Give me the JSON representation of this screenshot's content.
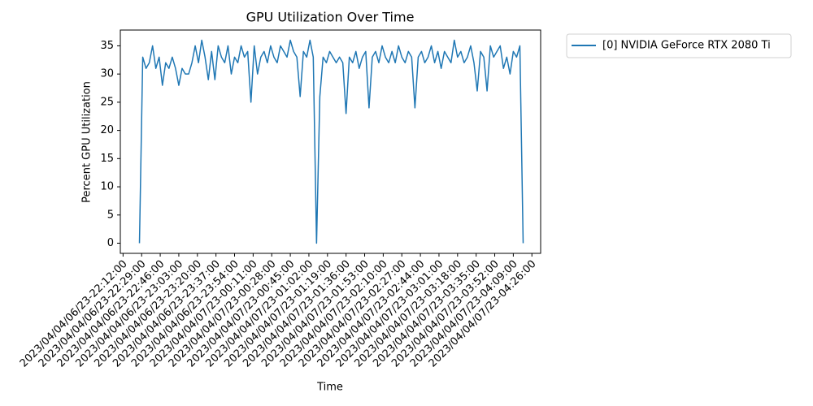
{
  "chart_data": {
    "type": "line",
    "title": "GPU Utilization Over Time",
    "x_label": "Time",
    "y_label": "Percent GPU Utilization",
    "x": [
      "2023-04-06T22:27",
      "2023-04-06T22:30",
      "2023-04-06T22:33",
      "2023-04-06T22:36",
      "2023-04-06T22:39",
      "2023-04-06T22:42",
      "2023-04-06T22:45",
      "2023-04-06T22:48",
      "2023-04-06T22:51",
      "2023-04-06T22:54",
      "2023-04-06T22:57",
      "2023-04-06T23:00",
      "2023-04-06T23:03",
      "2023-04-06T23:06",
      "2023-04-06T23:09",
      "2023-04-06T23:12",
      "2023-04-06T23:15",
      "2023-04-06T23:18",
      "2023-04-06T23:21",
      "2023-04-06T23:24",
      "2023-04-06T23:27",
      "2023-04-06T23:30",
      "2023-04-06T23:33",
      "2023-04-06T23:36",
      "2023-04-06T23:39",
      "2023-04-06T23:42",
      "2023-04-06T23:45",
      "2023-04-06T23:48",
      "2023-04-06T23:51",
      "2023-04-06T23:54",
      "2023-04-06T23:57",
      "2023-04-07T00:00",
      "2023-04-07T00:03",
      "2023-04-07T00:06",
      "2023-04-07T00:09",
      "2023-04-07T00:12",
      "2023-04-07T00:15",
      "2023-04-07T00:18",
      "2023-04-07T00:21",
      "2023-04-07T00:24",
      "2023-04-07T00:27",
      "2023-04-07T00:30",
      "2023-04-07T00:33",
      "2023-04-07T00:36",
      "2023-04-07T00:39",
      "2023-04-07T00:42",
      "2023-04-07T00:45",
      "2023-04-07T00:48",
      "2023-04-07T00:51",
      "2023-04-07T00:54",
      "2023-04-07T00:57",
      "2023-04-07T01:00",
      "2023-04-07T01:03",
      "2023-04-07T01:06",
      "2023-04-07T01:09",
      "2023-04-07T01:12",
      "2023-04-07T01:15",
      "2023-04-07T01:18",
      "2023-04-07T01:21",
      "2023-04-07T01:24",
      "2023-04-07T01:27",
      "2023-04-07T01:30",
      "2023-04-07T01:33",
      "2023-04-07T01:36",
      "2023-04-07T01:39",
      "2023-04-07T01:42",
      "2023-04-07T01:45",
      "2023-04-07T01:48",
      "2023-04-07T01:51",
      "2023-04-07T01:54",
      "2023-04-07T01:57",
      "2023-04-07T02:00",
      "2023-04-07T02:03",
      "2023-04-07T02:06",
      "2023-04-07T02:09",
      "2023-04-07T02:12",
      "2023-04-07T02:15",
      "2023-04-07T02:18",
      "2023-04-07T02:21",
      "2023-04-07T02:24",
      "2023-04-07T02:27",
      "2023-04-07T02:30",
      "2023-04-07T02:33",
      "2023-04-07T02:36",
      "2023-04-07T02:39",
      "2023-04-07T02:42",
      "2023-04-07T02:45",
      "2023-04-07T02:48",
      "2023-04-07T02:51",
      "2023-04-07T02:54",
      "2023-04-07T02:57",
      "2023-04-07T03:00",
      "2023-04-07T03:03",
      "2023-04-07T03:06",
      "2023-04-07T03:09",
      "2023-04-07T03:12",
      "2023-04-07T03:15",
      "2023-04-07T03:18",
      "2023-04-07T03:21",
      "2023-04-07T03:24",
      "2023-04-07T03:27",
      "2023-04-07T03:30",
      "2023-04-07T03:33",
      "2023-04-07T03:36",
      "2023-04-07T03:39",
      "2023-04-07T03:42",
      "2023-04-07T03:45",
      "2023-04-07T03:48",
      "2023-04-07T03:51",
      "2023-04-07T03:54",
      "2023-04-07T03:57",
      "2023-04-07T04:00",
      "2023-04-07T04:03",
      "2023-04-07T04:06",
      "2023-04-07T04:09",
      "2023-04-07T04:12",
      "2023-04-07T04:15",
      "2023-04-07T04:18"
    ],
    "series": [
      {
        "name": "[0] NVIDIA GeForce RTX 2080 Ti",
        "color": "#1f77b4",
        "values": [
          0,
          33,
          31,
          32,
          35,
          31,
          33,
          28,
          32,
          31,
          33,
          31,
          28,
          31,
          30,
          30,
          32,
          35,
          32,
          36,
          33,
          29,
          34,
          29,
          35,
          33,
          32,
          35,
          30,
          33,
          32,
          35,
          33,
          34,
          25,
          35,
          30,
          33,
          34,
          32,
          35,
          33,
          32,
          35,
          34,
          33,
          36,
          34,
          33,
          26,
          34,
          33,
          36,
          33,
          0,
          26,
          33,
          32,
          34,
          33,
          32,
          33,
          32,
          23,
          33,
          32,
          34,
          31,
          33,
          34,
          24,
          33,
          34,
          32,
          35,
          33,
          32,
          34,
          32,
          35,
          33,
          32,
          34,
          33,
          24,
          33,
          34,
          32,
          33,
          35,
          32,
          34,
          31,
          34,
          33,
          32,
          36,
          33,
          34,
          32,
          33,
          35,
          32,
          27,
          34,
          33,
          27,
          35,
          33,
          34,
          35,
          31,
          33,
          30,
          34,
          33,
          35,
          0
        ]
      }
    ],
    "xlim": [
      "2023-04-06T22:09:30",
      "2023-04-07T04:34:00"
    ],
    "xticks": [
      {
        "value": "2023-04-06T22:12",
        "label": "2023/04/04/06/23-22:12:00"
      },
      {
        "value": "2023-04-06T22:29",
        "label": "2023/04/04/06/23-22:29:00"
      },
      {
        "value": "2023-04-06T22:46",
        "label": "2023/04/04/06/23-22:46:00"
      },
      {
        "value": "2023-04-06T23:03",
        "label": "2023/04/04/06/23-23:03:00"
      },
      {
        "value": "2023-04-06T23:20",
        "label": "2023/04/04/06/23-23:20:00"
      },
      {
        "value": "2023-04-06T23:37",
        "label": "2023/04/04/06/23-23:37:00"
      },
      {
        "value": "2023-04-06T23:54",
        "label": "2023/04/04/06/23-23:54:00"
      },
      {
        "value": "2023-04-07T00:11",
        "label": "2023/04/04/07/23-00:11:00"
      },
      {
        "value": "2023-04-07T00:28",
        "label": "2023/04/04/07/23-00:28:00"
      },
      {
        "value": "2023-04-07T00:45",
        "label": "2023/04/04/07/23-00:45:00"
      },
      {
        "value": "2023-04-07T01:02",
        "label": "2023/04/04/07/23-01:02:00"
      },
      {
        "value": "2023-04-07T01:19",
        "label": "2023/04/04/07/23-01:19:00"
      },
      {
        "value": "2023-04-07T01:36",
        "label": "2023/04/04/07/23-01:36:00"
      },
      {
        "value": "2023-04-07T01:53",
        "label": "2023/04/04/07/23-01:53:00"
      },
      {
        "value": "2023-04-07T02:10",
        "label": "2023/04/04/07/23-02:10:00"
      },
      {
        "value": "2023-04-07T02:27",
        "label": "2023/04/04/07/23-02:27:00"
      },
      {
        "value": "2023-04-07T02:44",
        "label": "2023/04/04/07/23-02:44:00"
      },
      {
        "value": "2023-04-07T03:01",
        "label": "2023/04/04/07/23-03:01:00"
      },
      {
        "value": "2023-04-07T03:18",
        "label": "2023/04/04/07/23-03:18:00"
      },
      {
        "value": "2023-04-07T03:35",
        "label": "2023/04/04/07/23-03:35:00"
      },
      {
        "value": "2023-04-07T03:52",
        "label": "2023/04/04/07/23-03:52:00"
      },
      {
        "value": "2023-04-07T04:09",
        "label": "2023/04/04/07/23-04:09:00"
      },
      {
        "value": "2023-04-07T04:26",
        "label": "2023/04/04/07/23-04:26:00"
      }
    ],
    "ylim": [
      -1.8,
      37.8
    ],
    "yticks": [
      0,
      5,
      10,
      15,
      20,
      25,
      30,
      35
    ],
    "grid": false,
    "legend": "outside upper right"
  }
}
